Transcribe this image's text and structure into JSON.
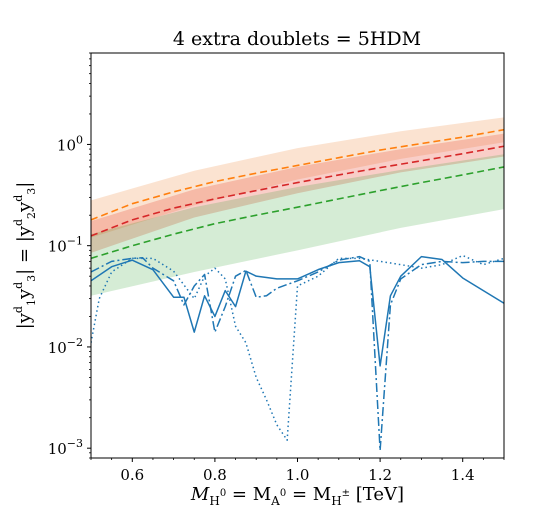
{
  "chart_data": {
    "type": "line",
    "title": "4 extra doublets = 5HDM",
    "xlabel_parts": [
      "M",
      "H",
      "0",
      " = M",
      "A",
      "0",
      " = M",
      "H",
      "±",
      " [TeV]"
    ],
    "ylabel_parts": [
      "|y",
      "d",
      "1",
      "y",
      "d",
      "3",
      "| = |y",
      "d",
      "2",
      "y",
      "d",
      "3",
      "|"
    ],
    "xlim": [
      0.5,
      1.5
    ],
    "ylim": [
      0.0008,
      8
    ],
    "yscale": "log",
    "grid": false,
    "x_ticks": [
      {
        "value": 0.6,
        "label": "0.6"
      },
      {
        "value": 0.8,
        "label": "0.8"
      },
      {
        "value": 1.0,
        "label": "1.0"
      },
      {
        "value": 1.2,
        "label": "1.2"
      },
      {
        "value": 1.4,
        "label": "1.4"
      }
    ],
    "y_ticks": [
      {
        "value": 0.001,
        "base": "10",
        "exp": "−3"
      },
      {
        "value": 0.01,
        "base": "10",
        "exp": "−2"
      },
      {
        "value": 0.1,
        "base": "10",
        "exp": "−1"
      },
      {
        "value": 1,
        "base": "10",
        "exp": "0"
      }
    ],
    "bands": [
      {
        "color": "#f4b07a",
        "opacity": 0.35,
        "x": [
          0.5,
          0.75,
          1.0,
          1.25,
          1.5
        ],
        "lower": [
          0.12,
          0.25,
          0.45,
          0.72,
          1.05
        ],
        "upper": [
          0.28,
          0.55,
          0.92,
          1.35,
          1.85
        ]
      },
      {
        "color": "#e8503a",
        "opacity": 0.28,
        "x": [
          0.5,
          0.75,
          1.0,
          1.25,
          1.5
        ],
        "lower": [
          0.085,
          0.19,
          0.33,
          0.53,
          0.76
        ],
        "upper": [
          0.175,
          0.36,
          0.6,
          0.9,
          1.28
        ]
      },
      {
        "color": "#2ca02c",
        "opacity": 0.2,
        "x": [
          0.5,
          0.75,
          1.0,
          1.25,
          1.5
        ],
        "lower": [
          0.032,
          0.055,
          0.09,
          0.15,
          0.23
        ],
        "upper": [
          0.13,
          0.24,
          0.38,
          0.56,
          0.8
        ]
      }
    ],
    "series": [
      {
        "color": "#ff7f0e",
        "dash": "dashed",
        "x": [
          0.5,
          0.6,
          0.7,
          0.8,
          0.9,
          1.0,
          1.1,
          1.2,
          1.3,
          1.4,
          1.5
        ],
        "y": [
          0.18,
          0.26,
          0.34,
          0.43,
          0.52,
          0.62,
          0.74,
          0.88,
          1.02,
          1.18,
          1.4
        ]
      },
      {
        "color": "#d62728",
        "dash": "dashed",
        "x": [
          0.5,
          0.6,
          0.7,
          0.8,
          0.9,
          1.0,
          1.1,
          1.2,
          1.3,
          1.4,
          1.5
        ],
        "y": [
          0.125,
          0.18,
          0.235,
          0.29,
          0.35,
          0.42,
          0.5,
          0.59,
          0.69,
          0.81,
          0.96
        ]
      },
      {
        "color": "#2ca02c",
        "dash": "dashed",
        "x": [
          0.5,
          0.6,
          0.7,
          0.8,
          0.9,
          1.0,
          1.1,
          1.2,
          1.3,
          1.4,
          1.5
        ],
        "y": [
          0.075,
          0.1,
          0.13,
          0.165,
          0.2,
          0.24,
          0.29,
          0.35,
          0.42,
          0.5,
          0.6
        ]
      },
      {
        "color": "#1f77b4",
        "dash": "solid",
        "x": [
          0.5,
          0.55,
          0.6,
          0.65,
          0.7,
          0.725,
          0.75,
          0.775,
          0.8,
          0.825,
          0.85,
          0.875,
          0.9,
          0.95,
          1.0,
          1.05,
          1.1,
          1.15,
          1.175,
          1.2,
          1.225,
          1.25,
          1.3,
          1.35,
          1.4,
          1.45,
          1.5
        ],
        "y": [
          0.045,
          0.062,
          0.072,
          0.058,
          0.031,
          0.031,
          0.014,
          0.032,
          0.02,
          0.036,
          0.025,
          0.056,
          0.05,
          0.047,
          0.047,
          0.058,
          0.068,
          0.071,
          0.062,
          0.0065,
          0.032,
          0.05,
          0.078,
          0.073,
          0.048,
          0.036,
          0.027
        ]
      },
      {
        "color": "#1f77b4",
        "dash": "dashdot",
        "x": [
          0.5,
          0.55,
          0.6,
          0.625,
          0.65,
          0.7,
          0.725,
          0.75,
          0.775,
          0.8,
          0.825,
          0.85,
          0.875,
          0.9,
          0.925,
          0.95,
          1.0,
          1.05,
          1.1,
          1.15,
          1.175,
          1.2,
          1.225,
          1.25,
          1.3,
          1.35,
          1.4,
          1.45,
          1.5
        ],
        "y": [
          0.055,
          0.07,
          0.075,
          0.076,
          0.06,
          0.045,
          0.026,
          0.04,
          0.052,
          0.014,
          0.025,
          0.05,
          0.057,
          0.031,
          0.032,
          0.038,
          0.045,
          0.055,
          0.072,
          0.078,
          0.07,
          0.00095,
          0.026,
          0.047,
          0.065,
          0.07,
          0.068,
          0.07,
          0.07
        ]
      },
      {
        "color": "#1f77b4",
        "dash": "dotted",
        "x": [
          0.5,
          0.52,
          0.55,
          0.6,
          0.65,
          0.7,
          0.75,
          0.775,
          0.8,
          0.825,
          0.85,
          0.875,
          0.9,
          0.925,
          0.95,
          0.975,
          1.0,
          1.05,
          1.1,
          1.15,
          1.2,
          1.25,
          1.3,
          1.35,
          1.4,
          1.45,
          1.5
        ],
        "y": [
          0.011,
          0.03,
          0.055,
          0.075,
          0.075,
          0.056,
          0.03,
          0.05,
          0.06,
          0.047,
          0.016,
          0.011,
          0.005,
          0.003,
          0.0017,
          0.0012,
          0.04,
          0.05,
          0.075,
          0.075,
          0.07,
          0.065,
          0.06,
          0.065,
          0.08,
          0.065,
          0.075
        ]
      }
    ]
  }
}
